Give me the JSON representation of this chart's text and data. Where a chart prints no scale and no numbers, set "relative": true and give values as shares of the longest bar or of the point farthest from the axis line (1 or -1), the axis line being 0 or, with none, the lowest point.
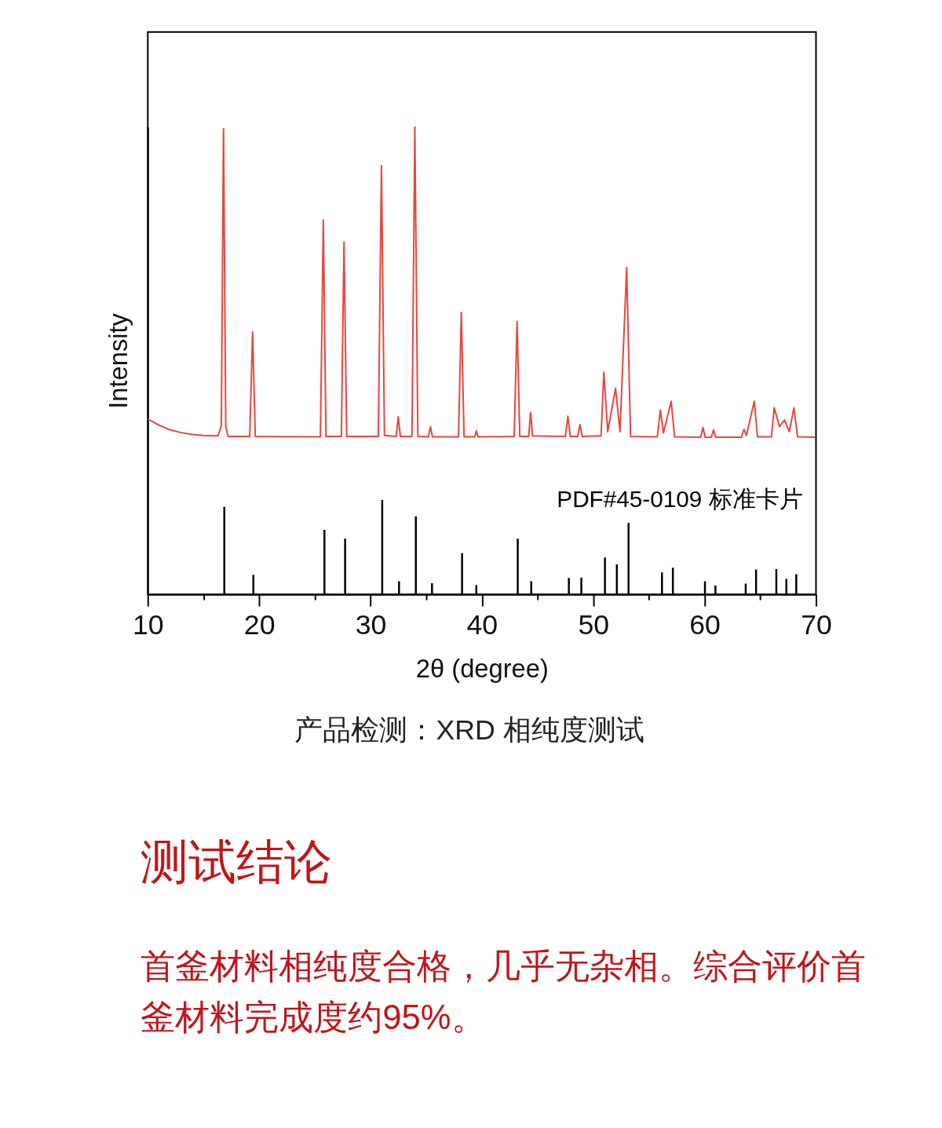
{
  "chart_data": [
    {
      "type": "line",
      "xlabel": "2θ (degree)",
      "ylabel": "Intensity",
      "relative": true,
      "xlim": [
        10,
        70
      ],
      "xticks": [
        10,
        {
          "value": 15,
          "label": null
        },
        20,
        {
          "value": 25,
          "label": null
        },
        30,
        {
          "value": 35,
          "label": null
        },
        40,
        {
          "value": 45,
          "label": null
        },
        50,
        {
          "value": 55,
          "label": null
        },
        60,
        {
          "value": 65,
          "label": null
        },
        70
      ],
      "series": [
        {
          "type": "line",
          "color": "#e8453c",
          "x": [
            10,
            11,
            12,
            13,
            14,
            15,
            16.3,
            16.6,
            16.8,
            17.0,
            17.2,
            19.15,
            19.41,
            19.65,
            25.5,
            25.76,
            26.0,
            27.38,
            27.62,
            27.86,
            30.7,
            30.98,
            31.25,
            32.3,
            32.49,
            32.68,
            33.72,
            33.98,
            34.25,
            35.2,
            35.38,
            35.56,
            37.9,
            38.15,
            38.4,
            39.35,
            39.5,
            39.65,
            42.9,
            43.16,
            43.4,
            44.2,
            44.37,
            44.55,
            47.5,
            47.72,
            47.94,
            48.6,
            48.81,
            49.0,
            50.7,
            50.95,
            51.3,
            52.0,
            52.4,
            53.0,
            53.35,
            55.75,
            56.03,
            56.3,
            57.0,
            57.3,
            59.65,
            59.85,
            60.05,
            60.6,
            60.8,
            61.0,
            63.3,
            63.53,
            63.75,
            64.46,
            64.75,
            66.0,
            66.25,
            66.72,
            67.18,
            67.6,
            68.02,
            68.35,
            70
          ],
          "values": [
            0.375,
            0.362,
            0.352,
            0.346,
            0.342,
            0.34,
            0.339,
            0.36,
            0.996,
            0.36,
            0.338,
            0.338,
            0.561,
            0.338,
            0.337,
            0.801,
            0.338,
            0.338,
            0.754,
            0.338,
            0.338,
            0.917,
            0.34,
            0.338,
            0.38,
            0.338,
            0.338,
            1.0,
            0.338,
            0.337,
            0.359,
            0.337,
            0.337,
            0.603,
            0.337,
            0.337,
            0.35,
            0.337,
            0.338,
            0.584,
            0.338,
            0.338,
            0.389,
            0.339,
            0.338,
            0.381,
            0.338,
            0.338,
            0.363,
            0.338,
            0.339,
            0.475,
            0.348,
            0.441,
            0.348,
            0.699,
            0.338,
            0.337,
            0.394,
            0.345,
            0.413,
            0.337,
            0.336,
            0.357,
            0.336,
            0.336,
            0.352,
            0.336,
            0.336,
            0.353,
            0.34,
            0.413,
            0.337,
            0.337,
            0.399,
            0.359,
            0.373,
            0.348,
            0.399,
            0.337,
            0.336
          ]
        },
        {
          "type": "bar",
          "name": "PDF#45-0109 标准卡片",
          "color": "#000000",
          "x": [
            16.87,
            19.48,
            25.86,
            27.72,
            31.05,
            32.56,
            34.07,
            35.52,
            38.22,
            39.5,
            43.22,
            44.43,
            47.81,
            48.93,
            51.05,
            52.12,
            53.17,
            56.17,
            57.15,
            60.03,
            60.97,
            63.69,
            64.62,
            66.44,
            67.34,
            68.23
          ],
          "values": [
            0.187,
            0.042,
            0.138,
            0.119,
            0.202,
            0.028,
            0.167,
            0.024,
            0.088,
            0.02,
            0.119,
            0.028,
            0.035,
            0.036,
            0.079,
            0.064,
            0.153,
            0.047,
            0.057,
            0.028,
            0.019,
            0.023,
            0.053,
            0.054,
            0.033,
            0.043
          ]
        }
      ],
      "annotations": [
        "产品检测：XRD 相纯度测试"
      ]
    },
    {
      "type": "other",
      "title": "测试结论",
      "annotations": [
        "首釜材料相纯度合格，几乎无杂相。综合评价首釜材料完成度约95%。"
      ]
    }
  ]
}
